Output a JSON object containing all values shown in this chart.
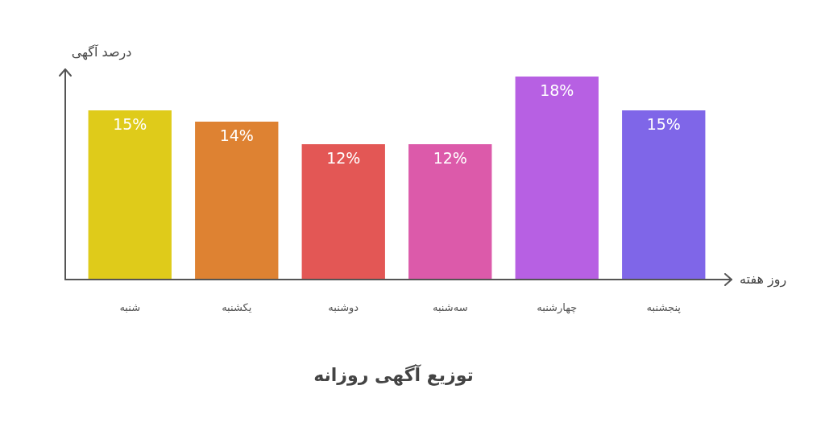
{
  "chart_data": {
    "type": "bar",
    "title": "توزیع آگهی روزانه",
    "xlabel": "روز هفته",
    "ylabel": "درصد آگهی",
    "categories": [
      "شنبه",
      "یکشنبه",
      "دوشنبه",
      "سه‌شنبه",
      "چهارشنبه",
      "پنجشنبه"
    ],
    "values": [
      15,
      14,
      12,
      12,
      18,
      15
    ],
    "value_labels": [
      "15%",
      "14%",
      "12%",
      "12%",
      "18%",
      "15%"
    ],
    "colors": [
      "#dfcb1a",
      "#de8232",
      "#e35755",
      "#dc5aaa",
      "#b760e3",
      "#7f66e8"
    ],
    "ylim": [
      0,
      18.5
    ],
    "tick_labels": "x",
    "grid": false,
    "legend": false
  }
}
